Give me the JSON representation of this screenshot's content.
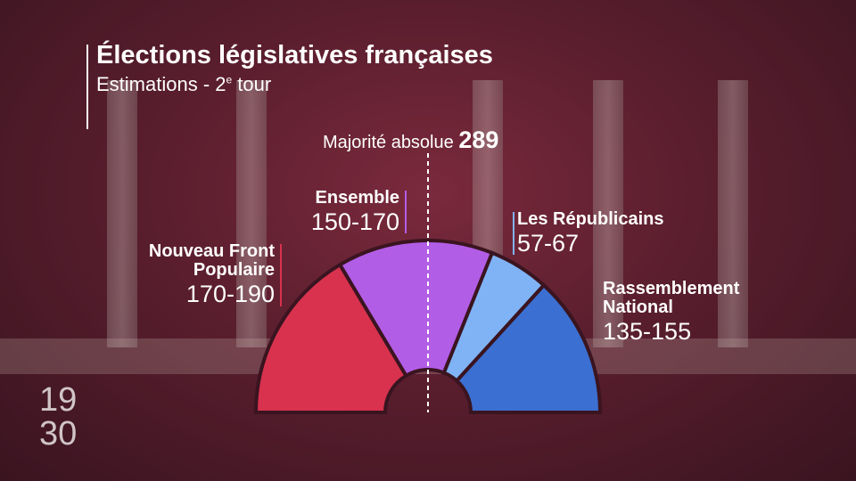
{
  "chart_data": {
    "type": "hemicycle",
    "title": "Élections législatives françaises",
    "subtitle": {
      "main": "Estimations - 2",
      "sup": "e",
      "rest": " tour"
    },
    "majority": {
      "label": "Majorité absolue",
      "value": 289
    },
    "series": [
      {
        "name": "Nouveau Front Populaire",
        "color": "#d8324e",
        "values": [
          180
        ],
        "value_labels": [
          "170-190"
        ]
      },
      {
        "name": "Ensemble",
        "color": "#b25de6",
        "values": [
          160
        ],
        "value_labels": [
          "150-170"
        ]
      },
      {
        "name": "Les Républicains",
        "color": "#80b3f5",
        "values": [
          62
        ],
        "value_labels": [
          "57-67"
        ]
      },
      {
        "name": "Rassemblement National",
        "color": "#3b6fd1",
        "values": [
          145
        ],
        "value_labels": [
          "135-155"
        ]
      }
    ]
  },
  "logo": {
    "top": "19",
    "bottom": "30"
  }
}
